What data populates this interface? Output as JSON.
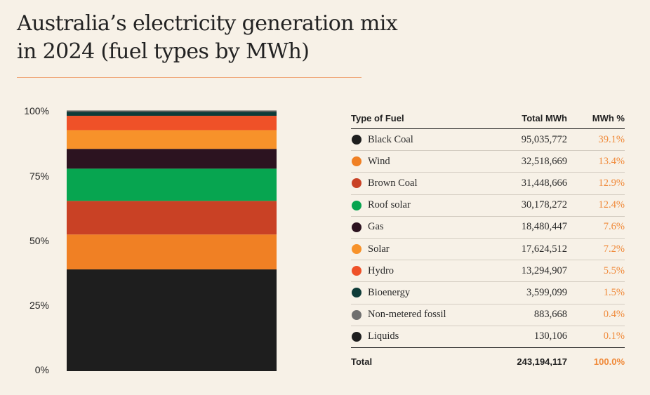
{
  "title": {
    "line1": "Australia’s electricity generation mix",
    "line2": "in 2024 (fuel types by MWh)"
  },
  "chart_data": {
    "type": "bar",
    "stacked": true,
    "ylim": [
      0,
      100
    ],
    "yticks": [
      "100%",
      "75%",
      "50%",
      "25%",
      "0%"
    ],
    "series": [
      {
        "name": "Black Coal",
        "value_mwh": 95035772,
        "percent": 39.1,
        "color": "#1e1e1e"
      },
      {
        "name": "Wind",
        "value_mwh": 32518669,
        "percent": 13.4,
        "color": "#f08024"
      },
      {
        "name": "Brown Coal",
        "value_mwh": 31448666,
        "percent": 12.9,
        "color": "#c94125"
      },
      {
        "name": "Roof solar",
        "value_mwh": 30178272,
        "percent": 12.4,
        "color": "#07a550"
      },
      {
        "name": "Gas",
        "value_mwh": 18480447,
        "percent": 7.6,
        "color": "#2c1320"
      },
      {
        "name": "Solar",
        "value_mwh": 17624512,
        "percent": 7.2,
        "color": "#f7922a"
      },
      {
        "name": "Hydro",
        "value_mwh": 13294907,
        "percent": 5.5,
        "color": "#ef5128"
      },
      {
        "name": "Bioenergy",
        "value_mwh": 3599099,
        "percent": 1.5,
        "color": "#0e3b38"
      },
      {
        "name": "Non-metered fossil",
        "value_mwh": 883668,
        "percent": 0.4,
        "color": "#6f6f6f"
      },
      {
        "name": "Liquids",
        "value_mwh": 130106,
        "percent": 0.1,
        "color": "#1e1e1e"
      }
    ]
  },
  "table": {
    "headers": {
      "fuel": "Type of Fuel",
      "mwh": "Total MWh",
      "pct": "MWh %"
    },
    "rows": [
      {
        "fuel": "Black Coal",
        "mwh": "95,035,772",
        "pct": "39.1%",
        "color": "#1e1e1e"
      },
      {
        "fuel": "Wind",
        "mwh": "32,518,669",
        "pct": "13.4%",
        "color": "#f08024"
      },
      {
        "fuel": "Brown Coal",
        "mwh": "31,448,666",
        "pct": "12.9%",
        "color": "#c94125"
      },
      {
        "fuel": "Roof solar",
        "mwh": "30,178,272",
        "pct": "12.4%",
        "color": "#07a550"
      },
      {
        "fuel": "Gas",
        "mwh": "18,480,447",
        "pct": "7.6%",
        "color": "#2c1320"
      },
      {
        "fuel": "Solar",
        "mwh": "17,624,512",
        "pct": "7.2%",
        "color": "#f7922a"
      },
      {
        "fuel": "Hydro",
        "mwh": "13,294,907",
        "pct": "5.5%",
        "color": "#ef5128"
      },
      {
        "fuel": "Bioenergy",
        "mwh": "3,599,099",
        "pct": "1.5%",
        "color": "#0e3b38"
      },
      {
        "fuel": "Non-metered fossil",
        "mwh": "883,668",
        "pct": "0.4%",
        "color": "#6f6f6f"
      },
      {
        "fuel": "Liquids",
        "mwh": "130,106",
        "pct": "0.1%",
        "color": "#1e1e1e"
      }
    ],
    "total": {
      "label": "Total",
      "mwh": "243,194,117",
      "pct": "100.0%"
    }
  },
  "colors": {
    "background": "#f7f1e7",
    "accent": "#f08a3a",
    "rule": "#f0a97c"
  }
}
